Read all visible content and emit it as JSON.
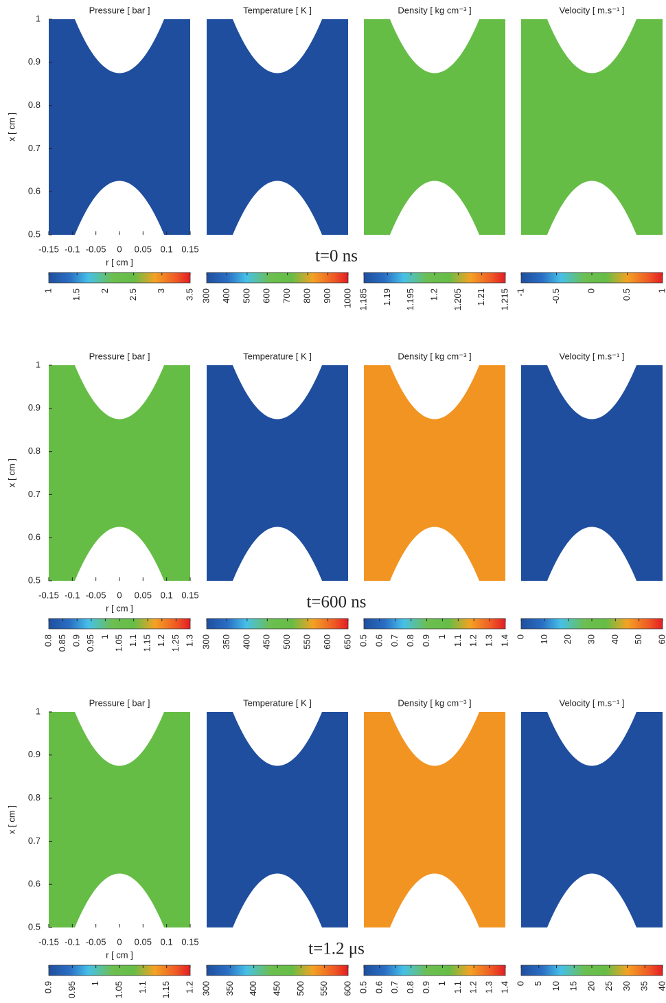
{
  "chart_data": [
    {
      "type": "heatmap",
      "title": "Pressure [ bar ]",
      "field_color": "#1f4e9e",
      "annotation": "t=0 ns",
      "x_label": "r [ cm ]",
      "y_label": "x [ cm ]",
      "xlim": [
        -0.15,
        0.15
      ],
      "ylim": [
        0.5,
        1
      ],
      "xticks": [
        -0.15,
        -0.1,
        -0.05,
        0,
        0.05,
        0.1,
        0.15
      ],
      "yticks": [
        0.5,
        0.6,
        0.7,
        0.8,
        0.9,
        1
      ],
      "colorbar": {
        "lim": [
          1,
          3.5
        ],
        "ticks": [
          1,
          1.5,
          2,
          2.5,
          3,
          3.5
        ]
      }
    },
    {
      "type": "heatmap",
      "title": "Temperature [ K ]",
      "field_color": "#1f4e9e",
      "colorbar": {
        "lim": [
          300,
          1000
        ],
        "ticks": [
          300,
          400,
          500,
          600,
          700,
          800,
          900,
          1000
        ]
      }
    },
    {
      "type": "heatmap",
      "title": "Density [ kg cm⁻³ ]",
      "field_color": "#66bd46",
      "colorbar": {
        "lim": [
          1.185,
          1.215
        ],
        "ticks": [
          1.185,
          1.19,
          1.195,
          1.2,
          1.205,
          1.21,
          1.215
        ]
      }
    },
    {
      "type": "heatmap",
      "title": "Velocity [ m.s⁻¹ ]",
      "field_color": "#66bd46",
      "colorbar": {
        "lim": [
          -1,
          1
        ],
        "ticks": [
          -1,
          -0.5,
          0,
          0.5,
          1
        ]
      }
    },
    {
      "type": "heatmap",
      "title": "Pressure [ bar ]",
      "field_color": "#66bd46",
      "annotation": "t=600 ns",
      "x_label": "r [ cm ]",
      "y_label": "x [ cm ]",
      "xlim": [
        -0.15,
        0.15
      ],
      "ylim": [
        0.5,
        1
      ],
      "xticks": [
        -0.15,
        -0.1,
        -0.05,
        0,
        0.05,
        0.1,
        0.15
      ],
      "yticks": [
        0.5,
        0.6,
        0.7,
        0.8,
        0.9,
        1
      ],
      "colorbar": {
        "lim": [
          0.8,
          1.3
        ],
        "ticks": [
          0.8,
          0.85,
          0.9,
          0.95,
          1,
          1.05,
          1.1,
          1.15,
          1.2,
          1.25,
          1.3
        ]
      }
    },
    {
      "type": "heatmap",
      "title": "Temperature [ K ]",
      "field_color": "#1f4e9e",
      "colorbar": {
        "lim": [
          300,
          650
        ],
        "ticks": [
          300,
          350,
          400,
          450,
          500,
          550,
          600,
          650
        ]
      }
    },
    {
      "type": "heatmap",
      "title": "Density [ kg cm⁻³ ]",
      "field_color": "#f29422",
      "colorbar": {
        "lim": [
          0.5,
          1.4
        ],
        "ticks": [
          0.5,
          0.6,
          0.7,
          0.8,
          0.9,
          1,
          1.1,
          1.2,
          1.3,
          1.4
        ]
      }
    },
    {
      "type": "heatmap",
      "title": "Velocity [ m.s⁻¹ ]",
      "field_color": "#1f4e9e",
      "colorbar": {
        "lim": [
          0,
          60
        ],
        "ticks": [
          0,
          10,
          20,
          30,
          40,
          50,
          60
        ]
      }
    },
    {
      "type": "heatmap",
      "title": "Pressure [ bar ]",
      "field_color": "#66bd46",
      "annotation": "t=1.2 μs",
      "x_label": "r [ cm ]",
      "y_label": "x [ cm ]",
      "xlim": [
        -0.15,
        0.15
      ],
      "ylim": [
        0.5,
        1
      ],
      "xticks": [
        -0.15,
        -0.1,
        -0.05,
        0,
        0.05,
        0.1,
        0.15
      ],
      "yticks": [
        0.5,
        0.6,
        0.7,
        0.8,
        0.9,
        1
      ],
      "colorbar": {
        "lim": [
          0.9,
          1.2
        ],
        "ticks": [
          0.9,
          0.95,
          1,
          1.05,
          1.1,
          1.15,
          1.2
        ]
      }
    },
    {
      "type": "heatmap",
      "title": "Temperature [ K ]",
      "field_color": "#1f4e9e",
      "colorbar": {
        "lim": [
          300,
          600
        ],
        "ticks": [
          300,
          350,
          400,
          450,
          500,
          550,
          600
        ]
      }
    },
    {
      "type": "heatmap",
      "title": "Density [ kg cm⁻³ ]",
      "field_color": "#f29422",
      "colorbar": {
        "lim": [
          0.5,
          1.4
        ],
        "ticks": [
          0.5,
          0.6,
          0.7,
          0.8,
          0.9,
          1,
          1.1,
          1.2,
          1.3,
          1.4
        ]
      }
    },
    {
      "type": "heatmap",
      "title": "Velocity [ m.s⁻¹ ]",
      "field_color": "#1f4e9e",
      "colorbar": {
        "lim": [
          0,
          40
        ],
        "ticks": [
          0,
          5,
          10,
          15,
          20,
          25,
          30,
          35,
          40
        ]
      }
    }
  ]
}
